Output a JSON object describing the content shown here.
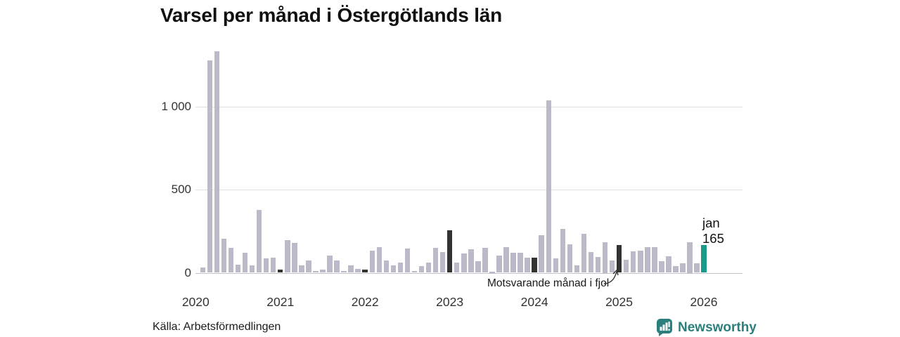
{
  "title": "Varsel per månad i Östergötlands län",
  "source": "Källa: Arbetsförmedlingen",
  "branding": {
    "name": "Newsworthy",
    "color": "#2b7f7d"
  },
  "annotation": {
    "text": "Motsvarande månad i fjol",
    "target_month": "2025-01"
  },
  "current_label": {
    "month": "jan",
    "value": "165"
  },
  "colors": {
    "bar": "#bcbac9",
    "highlight_previous_january": "#333333",
    "highlight_current": "#1a9b8a",
    "grid": "#dedee3",
    "axis_line": "#c4c4cc"
  },
  "chart_data": {
    "type": "bar",
    "title": "Varsel per månad i Östergötlands län",
    "xlabel": "",
    "ylabel": "",
    "ylim": [
      0,
      1400
    ],
    "grid": true,
    "y_ticks": [
      {
        "label": "0",
        "value": 0
      },
      {
        "label": "500",
        "value": 500
      },
      {
        "label": "1 000",
        "value": 1000
      }
    ],
    "x_tick_labels": [
      "2020",
      "2021",
      "2022",
      "2023",
      "2024",
      "2025",
      "2026"
    ],
    "roles_legend": {
      "n": "normal",
      "d": "same-month-previous-year (dark)",
      "c": "current-month (teal)"
    },
    "points": [
      [
        "2020-02",
        30,
        "n"
      ],
      [
        "2020-03",
        1280,
        "n"
      ],
      [
        "2020-04",
        1335,
        "n"
      ],
      [
        "2020-05",
        205,
        "n"
      ],
      [
        "2020-06",
        150,
        "n"
      ],
      [
        "2020-07",
        50,
        "n"
      ],
      [
        "2020-08",
        120,
        "n"
      ],
      [
        "2020-09",
        45,
        "n"
      ],
      [
        "2020-10",
        380,
        "n"
      ],
      [
        "2020-11",
        85,
        "n"
      ],
      [
        "2020-12",
        90,
        "n"
      ],
      [
        "2021-01",
        20,
        "d"
      ],
      [
        "2021-02",
        195,
        "n"
      ],
      [
        "2021-03",
        180,
        "n"
      ],
      [
        "2021-04",
        45,
        "n"
      ],
      [
        "2021-05",
        75,
        "n"
      ],
      [
        "2021-06",
        10,
        "n"
      ],
      [
        "2021-07",
        20,
        "n"
      ],
      [
        "2021-08",
        105,
        "n"
      ],
      [
        "2021-09",
        75,
        "n"
      ],
      [
        "2021-10",
        10,
        "n"
      ],
      [
        "2021-11",
        45,
        "n"
      ],
      [
        "2021-12",
        25,
        "n"
      ],
      [
        "2022-01",
        20,
        "d"
      ],
      [
        "2022-02",
        135,
        "n"
      ],
      [
        "2022-03",
        155,
        "n"
      ],
      [
        "2022-04",
        75,
        "n"
      ],
      [
        "2022-05",
        45,
        "n"
      ],
      [
        "2022-06",
        60,
        "n"
      ],
      [
        "2022-07",
        145,
        "n"
      ],
      [
        "2022-08",
        10,
        "n"
      ],
      [
        "2022-09",
        40,
        "n"
      ],
      [
        "2022-10",
        60,
        "n"
      ],
      [
        "2022-11",
        150,
        "n"
      ],
      [
        "2022-12",
        125,
        "n"
      ],
      [
        "2023-01",
        255,
        "d"
      ],
      [
        "2023-02",
        60,
        "n"
      ],
      [
        "2023-03",
        115,
        "n"
      ],
      [
        "2023-04",
        140,
        "n"
      ],
      [
        "2023-05",
        70,
        "n"
      ],
      [
        "2023-06",
        150,
        "n"
      ],
      [
        "2023-07",
        5,
        "n"
      ],
      [
        "2023-08",
        105,
        "n"
      ],
      [
        "2023-09",
        155,
        "n"
      ],
      [
        "2023-10",
        120,
        "n"
      ],
      [
        "2023-11",
        120,
        "n"
      ],
      [
        "2023-12",
        90,
        "n"
      ],
      [
        "2024-01",
        90,
        "d"
      ],
      [
        "2024-02",
        225,
        "n"
      ],
      [
        "2024-03",
        1040,
        "n"
      ],
      [
        "2024-04",
        85,
        "n"
      ],
      [
        "2024-05",
        265,
        "n"
      ],
      [
        "2024-06",
        170,
        "n"
      ],
      [
        "2024-07",
        45,
        "n"
      ],
      [
        "2024-08",
        235,
        "n"
      ],
      [
        "2024-09",
        125,
        "n"
      ],
      [
        "2024-10",
        95,
        "n"
      ],
      [
        "2024-11",
        185,
        "n"
      ],
      [
        "2024-12",
        75,
        "n"
      ],
      [
        "2025-01",
        165,
        "d"
      ],
      [
        "2025-02",
        80,
        "n"
      ],
      [
        "2025-03",
        130,
        "n"
      ],
      [
        "2025-04",
        135,
        "n"
      ],
      [
        "2025-05",
        155,
        "n"
      ],
      [
        "2025-06",
        155,
        "n"
      ],
      [
        "2025-07",
        70,
        "n"
      ],
      [
        "2025-08",
        100,
        "n"
      ],
      [
        "2025-09",
        40,
        "n"
      ],
      [
        "2025-10",
        55,
        "n"
      ],
      [
        "2025-11",
        185,
        "n"
      ],
      [
        "2025-12",
        55,
        "n"
      ],
      [
        "2026-01",
        165,
        "c"
      ]
    ]
  }
}
